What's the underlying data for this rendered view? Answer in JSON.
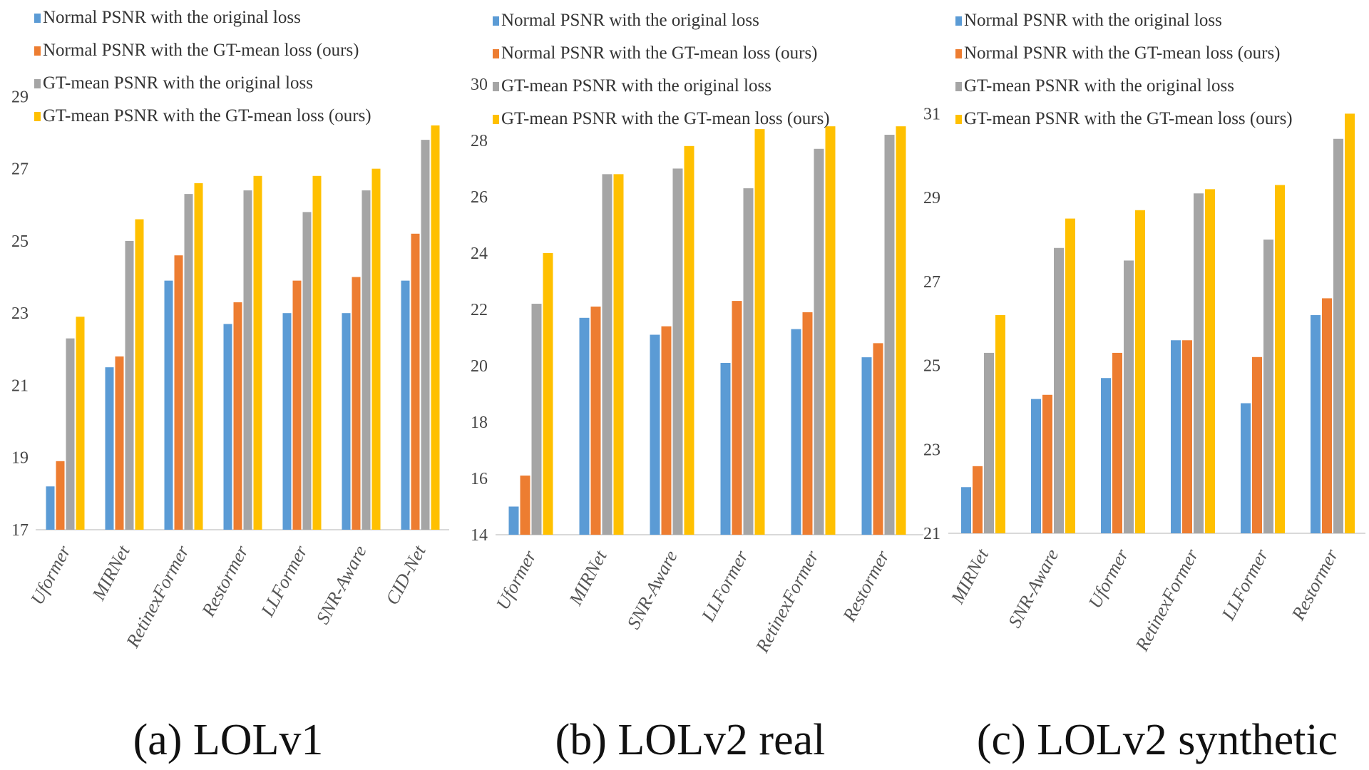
{
  "legend": [
    "Normal PSNR with the original loss",
    "Normal PSNR with the GT-mean loss (ours)",
    "GT-mean PSNR with the original loss",
    "GT-mean PSNR with the GT-mean loss (ours)"
  ],
  "colors": [
    "#5b9bd5",
    "#ed7d31",
    "#a5a5a5",
    "#ffc000"
  ],
  "chart_data": [
    {
      "type": "bar",
      "title": "(a) LOLv1",
      "categories": [
        "Uformer",
        "MIRNet",
        "RetinexFormer",
        "Restormer",
        "LLFormer",
        "SNR-Aware",
        "CID-Net"
      ],
      "ylim": [
        17,
        29.6
      ],
      "yticks": [
        17,
        19,
        21,
        23,
        25,
        27,
        29
      ],
      "series": [
        {
          "name": "Normal PSNR with the original loss",
          "values": [
            18.2,
            21.5,
            23.9,
            22.7,
            23.0,
            23.0,
            23.9
          ]
        },
        {
          "name": "Normal PSNR with the GT-mean loss (ours)",
          "values": [
            18.9,
            21.8,
            24.6,
            23.3,
            23.9,
            24.0,
            25.2
          ]
        },
        {
          "name": "GT-mean PSNR with the original loss",
          "values": [
            22.3,
            25.0,
            26.3,
            26.4,
            25.8,
            26.4,
            27.8
          ]
        },
        {
          "name": "GT-mean PSNR with the GT-mean loss (ours)",
          "values": [
            22.9,
            25.6,
            26.6,
            26.8,
            26.8,
            27.0,
            28.2
          ]
        }
      ]
    },
    {
      "type": "bar",
      "title": "(b) LOLv2 real",
      "categories": [
        "Uformer",
        "MIRNet",
        "SNR-Aware",
        "LLFormer",
        "RetinexFormer",
        "Restormer"
      ],
      "ylim": [
        14,
        30.2
      ],
      "yticks": [
        14,
        16,
        18,
        20,
        22,
        24,
        26,
        28,
        30
      ],
      "series": [
        {
          "name": "Normal PSNR with the original loss",
          "values": [
            15.0,
            21.7,
            21.1,
            20.1,
            21.3,
            20.3
          ]
        },
        {
          "name": "Normal PSNR with the GT-mean loss (ours)",
          "values": [
            16.1,
            22.1,
            21.4,
            22.3,
            21.9,
            20.8
          ]
        },
        {
          "name": "GT-mean PSNR with the original loss",
          "values": [
            22.2,
            26.8,
            27.0,
            26.3,
            27.7,
            28.2
          ]
        },
        {
          "name": "GT-mean PSNR with the GT-mean loss (ours)",
          "values": [
            24.0,
            26.8,
            27.8,
            28.4,
            28.5,
            28.5
          ]
        }
      ]
    },
    {
      "type": "bar",
      "title": "(c) LOLv2 synthetic",
      "categories": [
        "MIRNet",
        "SNR-Aware",
        "Uformer",
        "RetinexFormer",
        "LLFormer",
        "Restormer"
      ],
      "ylim": [
        21,
        31.5
      ],
      "yticks": [
        21,
        23,
        25,
        27,
        29,
        31
      ],
      "series": [
        {
          "name": "Normal PSNR with the original loss",
          "values": [
            22.1,
            24.2,
            24.7,
            25.6,
            24.1,
            26.2
          ]
        },
        {
          "name": "Normal PSNR with the GT-mean loss (ours)",
          "values": [
            22.6,
            24.3,
            25.3,
            25.6,
            25.2,
            26.6
          ]
        },
        {
          "name": "GT-mean PSNR with the original loss",
          "values": [
            25.3,
            27.8,
            27.5,
            29.1,
            28.0,
            30.4
          ]
        },
        {
          "name": "GT-mean PSNR with the GT-mean loss (ours)",
          "values": [
            26.2,
            28.5,
            28.7,
            29.2,
            29.3,
            31.0
          ]
        }
      ]
    }
  ]
}
